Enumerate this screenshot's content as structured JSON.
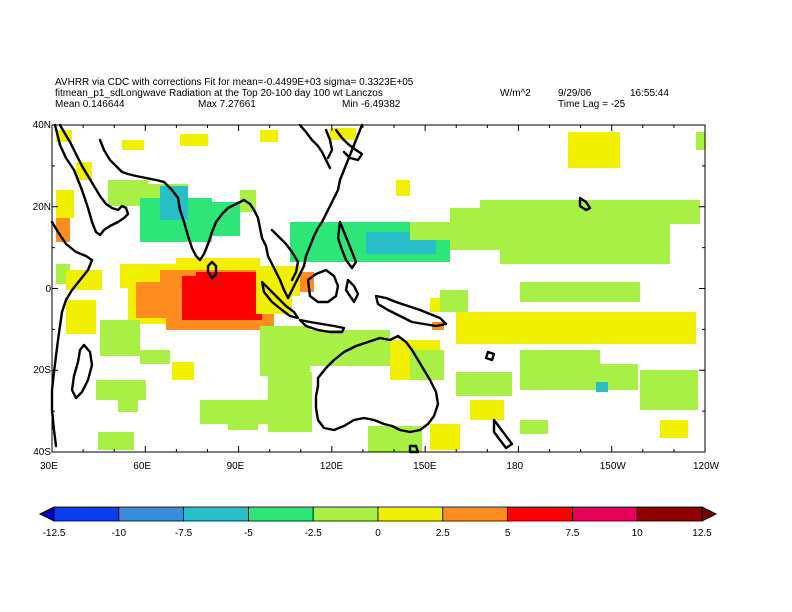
{
  "header": {
    "line1": "AVHRR via CDC with corrections Fit for mean=-0.4499E+03 sigma= 0.3323E+05",
    "line2": "fitmean_p1_sdLongwave Radiation at the Top 20-100 day 100 wt Lanczos",
    "mean": "Mean 0.146644",
    "max": "Max 7.27661",
    "min": "Min -6.49382",
    "units": "W/m^2",
    "date": "9/29/06",
    "time": "16:55:44",
    "lag": "Time Lag = -25"
  },
  "axes": {
    "lat_labels": [
      "40N",
      "20N",
      "0",
      "20S",
      "40S"
    ],
    "lon_labels": [
      "30E",
      "60E",
      "90E",
      "120E",
      "150E",
      "180",
      "150W",
      "120W"
    ]
  },
  "colorbar": {
    "labels": [
      "-12.5",
      "-10",
      "-7.5",
      "-5",
      "-2.5",
      "0",
      "2.5",
      "5",
      "7.5",
      "10",
      "12.5"
    ],
    "colors": [
      "#0a3cf0",
      "#3c8cdc",
      "#28bec8",
      "#2ee678",
      "#a8f046",
      "#f0f000",
      "#ff8c1e",
      "#ff0000",
      "#e6005a",
      "#8c0000"
    ],
    "under_color": "#0000c8",
    "over_color": "#780000"
  }
}
